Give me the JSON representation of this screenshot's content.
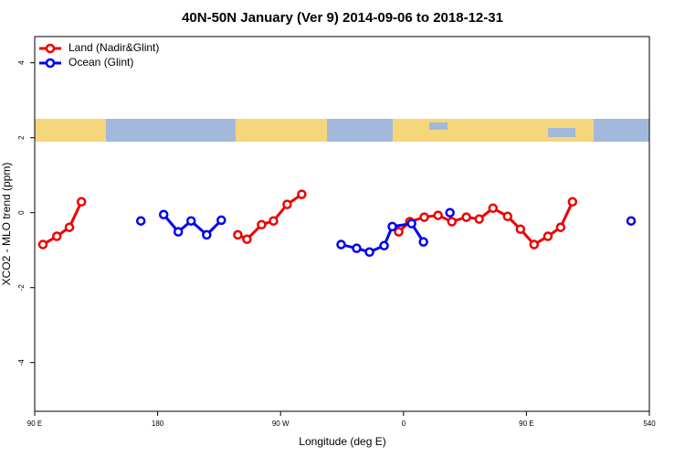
{
  "chart_data": {
    "type": "line",
    "title": "40N-50N January (Ver 9)   2014-09-06 to 2018-12-31",
    "x_label": "Longitude (deg E)",
    "y_label": "XCO2 - MLO trend (ppm)",
    "xlim": [
      90,
      540
    ],
    "xticks": [
      {
        "value": 90,
        "label": "90 E"
      },
      180,
      {
        "value": 270,
        "label": "90 W"
      },
      {
        "value": 360,
        "label": "0"
      },
      {
        "value": 450,
        "label": "90 E"
      },
      540
    ],
    "ylim": [
      -5.3,
      4.7
    ],
    "yticks": [
      -4,
      -2,
      0,
      2,
      4
    ],
    "legend": "top-left",
    "series": [
      {
        "name": "Land (Nadir&Glint)",
        "color": "#ee0000",
        "x": [
          96,
          106.2,
          115.4,
          124.2,
          null,
          238.7,
          245.4,
          256.1,
          264.8,
          274.8,
          285.5,
          null,
          356.5,
          364.6,
          375.2,
          385.3,
          395.4,
          406.0,
          415.4,
          425.5,
          436.2,
          445.6,
          455.6,
          465.7,
          475.0,
          483.7
        ],
        "values": [
          -0.85,
          -0.63,
          -0.39,
          0.29,
          null,
          -0.59,
          -0.71,
          -0.32,
          -0.22,
          0.22,
          0.49,
          null,
          -0.51,
          -0.24,
          -0.12,
          -0.07,
          -0.24,
          -0.12,
          -0.17,
          0.12,
          -0.1,
          -0.44,
          -0.85,
          -0.63,
          -0.39,
          0.29
        ]
      },
      {
        "name": "Ocean (Glint)",
        "color": "#0000ee",
        "x": [
          167.7,
          null,
          184.4,
          195.1,
          204.5,
          215.9,
          226.6,
          null,
          314.3,
          325.7,
          335.1,
          345.8,
          351.8,
          365.9,
          374.6,
          null,
          394.0,
          null,
          526.6
        ],
        "values": [
          -0.22,
          null,
          -0.05,
          -0.51,
          -0.22,
          -0.59,
          -0.2,
          null,
          -0.85,
          -0.95,
          -1.05,
          -0.88,
          -0.37,
          -0.29,
          -0.78,
          null,
          0.0,
          null,
          -0.22
        ]
      }
    ]
  }
}
